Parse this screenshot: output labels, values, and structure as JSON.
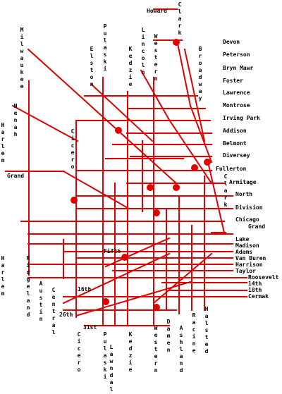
{
  "map": {
    "line_color": "#e00000",
    "label_color": "#000000",
    "marker_color": "#e00000"
  },
  "labels": {
    "howard": "Howard",
    "clark_north": "Clark",
    "milwaukee": "Milwaukee",
    "elston": "Elston",
    "pulaski_north": "Pulaski",
    "kedzie_north": "Kedzie",
    "lincoln": "Lincoln",
    "western_north": "Western",
    "broadway": "Broadway",
    "nenah": "Nenah",
    "harlem_north": "Harlem",
    "cicero_north": "Cicero",
    "grand_west": "Grand",
    "devon": "Devon",
    "peterson": "Peterson",
    "bryn_mawr": "Bryn Mawr",
    "foster": "Foster",
    "lawrence": "Lawrence",
    "montrose": "Montrose",
    "irving_park": "Irving Park",
    "addison": "Addison",
    "belmont": "Belmont",
    "diversey": "Diversey",
    "fullerton": "Fullerton",
    "armitage": "Armitage",
    "north": "North",
    "division": "Division",
    "chicago": "Chicago",
    "grand_east": "Grand",
    "lake": "Lake",
    "madison": "Madison",
    "adams": "Adams",
    "van_buren": "Van Buren",
    "harrison": "Harrison",
    "taylor": "Taylor",
    "roosevelt": "Roosevelt",
    "fourteenth": "14th",
    "eighteenth": "18th",
    "cermak": "Cermak",
    "clark_south": "Clark",
    "fifth": "Fifth",
    "sixteenth": "16th",
    "twenty_sixth": "26th",
    "thirty_first": "31st",
    "harlem_south": "Harlem",
    "ridgeland": "Ridgeland",
    "austin": "Austin",
    "central": "Central",
    "cicero_south": "Cicero",
    "pulaski_south": "Pulaski",
    "lawndale": "Lawndale",
    "kedzie_south": "Kedzie",
    "western_south": "Western",
    "damen": "Damen",
    "ashland": "Ashland",
    "racine": "Racine",
    "halsted": "Halsted"
  }
}
